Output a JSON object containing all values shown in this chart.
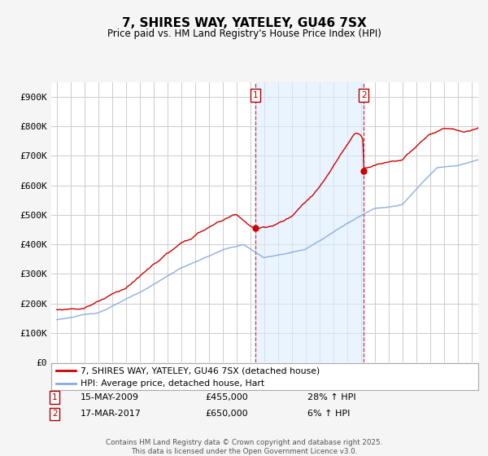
{
  "title": "7, SHIRES WAY, YATELEY, GU46 7SX",
  "subtitle": "Price paid vs. HM Land Registry's House Price Index (HPI)",
  "ylim": [
    0,
    950000
  ],
  "yticks": [
    0,
    100000,
    200000,
    300000,
    400000,
    500000,
    600000,
    700000,
    800000,
    900000
  ],
  "ytick_labels": [
    "£0",
    "£100K",
    "£200K",
    "£300K",
    "£400K",
    "£500K",
    "£600K",
    "£700K",
    "£800K",
    "£900K"
  ],
  "sale1_date": "15-MAY-2009",
  "sale1_price": 455000,
  "sale1_price_str": "£455,000",
  "sale1_hpi": "28% ↑ HPI",
  "sale2_date": "17-MAR-2017",
  "sale2_price": 650000,
  "sale2_price_str": "£650,000",
  "sale2_hpi": "6% ↑ HPI",
  "line1_color": "#cc0000",
  "line2_color": "#88aadd",
  "shade_color": "#ddeeff",
  "legend1": "7, SHIRES WAY, YATELEY, GU46 7SX (detached house)",
  "legend2": "HPI: Average price, detached house, Hart",
  "footnote1": "Contains HM Land Registry data © Crown copyright and database right 2025.",
  "footnote2": "This data is licensed under the Open Government Licence v3.0.",
  "background_color": "#f5f5f5",
  "plot_bg_color": "#ffffff",
  "grid_color": "#cccccc",
  "sale1_x": 2009.37,
  "sale2_x": 2017.21,
  "xlim_left": 1994.6,
  "xlim_right": 2025.5
}
